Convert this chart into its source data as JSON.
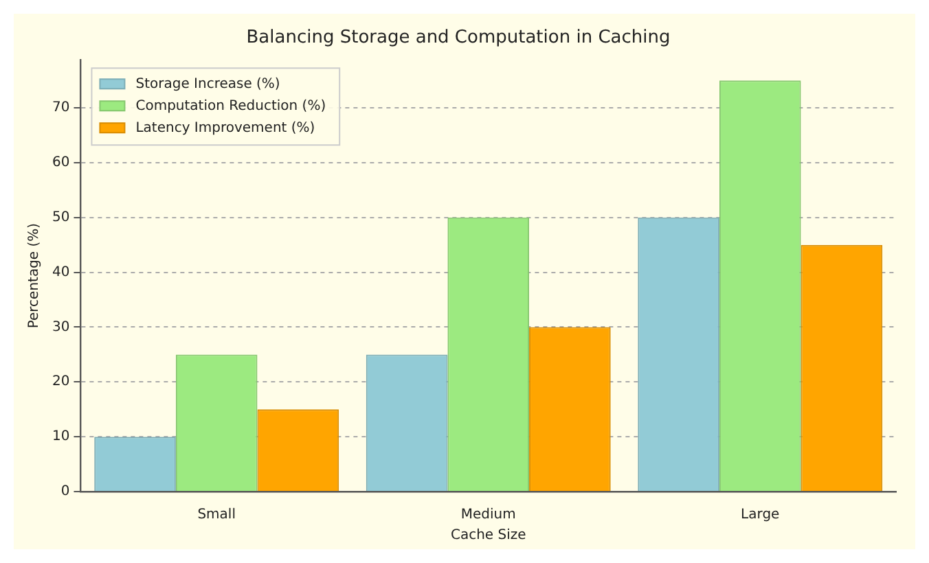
{
  "chart_data": {
    "type": "bar",
    "title": "Balancing Storage and Computation in Caching",
    "xlabel": "Cache Size",
    "ylabel": "Percentage (%)",
    "categories": [
      "Small",
      "Medium",
      "Large"
    ],
    "series": [
      {
        "name": "Storage Increase (%)",
        "color": "#92cbd6",
        "values": [
          10,
          25,
          50
        ]
      },
      {
        "name": "Computation Reduction (%)",
        "color": "#9cea80",
        "values": [
          25,
          50,
          75
        ]
      },
      {
        "name": "Latency Improvement (%)",
        "color": "#ffa500",
        "values": [
          15,
          30,
          45
        ]
      }
    ],
    "ylim": [
      0,
      78.75
    ],
    "yticks": [
      0,
      10,
      20,
      30,
      40,
      50,
      60,
      70
    ],
    "grid": "y",
    "legend": "top left"
  }
}
